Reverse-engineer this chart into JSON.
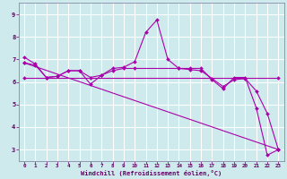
{
  "xlabel": "Windchill (Refroidissement éolien,°C)",
  "bg_color": "#ceeaec",
  "line_color": "#aa00aa",
  "grid_color": "#ffffff",
  "xlim": [
    -0.5,
    23.5
  ],
  "ylim": [
    2.5,
    9.5
  ],
  "yticks": [
    3,
    4,
    5,
    6,
    7,
    8,
    9
  ],
  "xticks": [
    0,
    1,
    2,
    3,
    4,
    5,
    6,
    7,
    8,
    9,
    10,
    11,
    12,
    13,
    14,
    15,
    16,
    17,
    18,
    19,
    20,
    21,
    22,
    23
  ],
  "line1_x": [
    0,
    1,
    2,
    3,
    4,
    5,
    6,
    7,
    8,
    9,
    10,
    11,
    12,
    13,
    14,
    15,
    16,
    17,
    18,
    19,
    20,
    21,
    22,
    23
  ],
  "line1_y": [
    7.1,
    6.8,
    6.2,
    6.25,
    6.5,
    6.5,
    5.9,
    6.3,
    6.6,
    6.65,
    6.9,
    8.2,
    8.75,
    7.0,
    6.6,
    6.6,
    6.6,
    6.1,
    5.7,
    6.2,
    6.2,
    4.85,
    2.75,
    3.0
  ],
  "line2_x": [
    0,
    1,
    2,
    3,
    4,
    5,
    6,
    7,
    8,
    9,
    10,
    14,
    15,
    16,
    17,
    18,
    19,
    20,
    21,
    22,
    23
  ],
  "line2_y": [
    6.85,
    6.75,
    6.2,
    6.25,
    6.5,
    6.5,
    6.2,
    6.3,
    6.5,
    6.6,
    6.6,
    6.6,
    6.55,
    6.5,
    6.15,
    5.8,
    6.1,
    6.15,
    5.6,
    4.6,
    3.0
  ],
  "line3_x": [
    0,
    23
  ],
  "line3_y": [
    6.2,
    6.2
  ],
  "line4_x": [
    0,
    23
  ],
  "line4_y": [
    6.85,
    3.0
  ]
}
